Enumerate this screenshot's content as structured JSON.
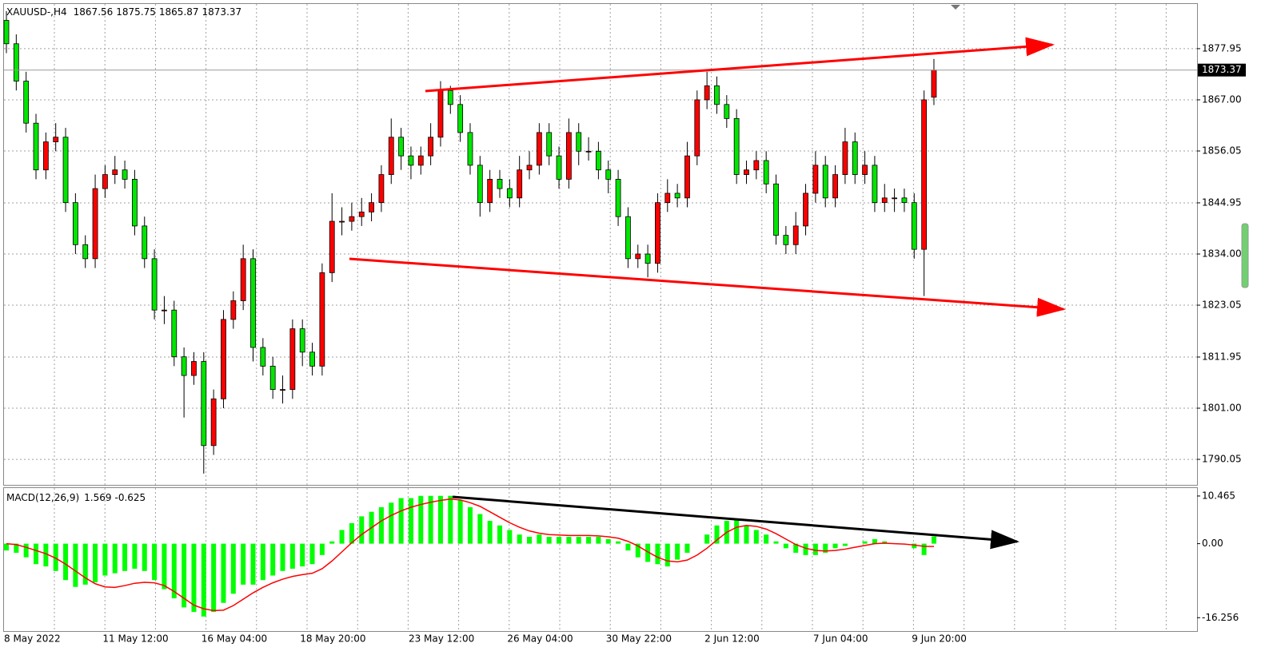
{
  "chart_data": [
    {
      "type": "candlestick",
      "title": "XAUUSD-,H4",
      "categories": [
        "8 May 2022",
        null,
        null,
        null,
        null,
        null,
        null,
        null,
        null,
        null,
        "11 May 12:00",
        null,
        null,
        null,
        null,
        null,
        null,
        null,
        null,
        null,
        "16 May 04:00",
        null,
        null,
        null,
        null,
        null,
        null,
        null,
        null,
        null,
        "18 May 20:00",
        null,
        null,
        null,
        null,
        null,
        null,
        null,
        null,
        null,
        null,
        "23 May 12:00",
        null,
        null,
        null,
        null,
        null,
        null,
        null,
        null,
        null,
        "26 May 04:00",
        null,
        null,
        null,
        null,
        null,
        null,
        null,
        null,
        null,
        "30 May 22:00",
        null,
        null,
        null,
        null,
        null,
        null,
        null,
        null,
        null,
        "2 Jun 12:00",
        null,
        null,
        null,
        null,
        null,
        null,
        null,
        null,
        null,
        null,
        "7 Jun 04:00",
        null,
        null,
        null,
        null,
        null,
        null,
        null,
        null,
        null,
        "9 Jun 20:00",
        null,
        null
      ],
      "open": [
        1884,
        1879,
        1871,
        1862,
        1852,
        1858,
        1859,
        1845,
        1836,
        1833,
        1848,
        1851,
        1852,
        1850,
        1840,
        1833,
        1822,
        1822,
        1812,
        1808,
        1811,
        1793,
        1803,
        1820,
        1824,
        1833,
        1814,
        1810,
        1805,
        1805,
        1818,
        1813,
        1810,
        1830,
        1841,
        1841,
        1842,
        1843,
        1845,
        1851,
        1859,
        1855,
        1853,
        1855,
        1859,
        1869,
        1866,
        1860,
        1853,
        1845,
        1850,
        1848,
        1846,
        1852,
        1853,
        1860,
        1855,
        1850,
        1860,
        1856,
        1856,
        1852,
        1850,
        1842,
        1833,
        1834,
        1832,
        1845,
        1847,
        1846,
        1855,
        1867,
        1870,
        1866,
        1863,
        1851,
        1852,
        1854,
        1849,
        1838,
        1836,
        1840,
        1847,
        1853,
        1846,
        1851,
        1858,
        1851,
        1853,
        1845,
        1846,
        1846,
        1845,
        1835,
        1867.56
      ],
      "high": [
        1886,
        1881,
        1873,
        1864,
        1860,
        1862,
        1861,
        1847,
        1838,
        1851,
        1853,
        1855,
        1854,
        1852,
        1842,
        1835,
        1825,
        1824,
        1814,
        1813,
        1813,
        1805,
        1822,
        1826,
        1836,
        1835,
        1816,
        1812,
        1808,
        1820,
        1820,
        1815,
        1832,
        1847,
        1844,
        1845,
        1846,
        1847,
        1853,
        1863,
        1861,
        1857,
        1857,
        1862,
        1871,
        1870,
        1868,
        1862,
        1855,
        1852,
        1852,
        1850,
        1855,
        1856,
        1862,
        1862,
        1857,
        1863,
        1862,
        1859,
        1858,
        1854,
        1852,
        1844,
        1836,
        1836,
        1847,
        1850,
        1849,
        1858,
        1869,
        1873,
        1872,
        1868,
        1865,
        1854,
        1856,
        1856,
        1851,
        1840,
        1843,
        1849,
        1856,
        1855,
        1853,
        1861,
        1860,
        1856,
        1855,
        1849,
        1848,
        1848,
        1847,
        1869,
        1875.75
      ],
      "low": [
        1877,
        1869,
        1860,
        1850,
        1850,
        1856,
        1843,
        1834,
        1831,
        1831,
        1846,
        1849,
        1848,
        1838,
        1831,
        1820,
        1819,
        1810,
        1799,
        1806,
        1787,
        1791,
        1801,
        1818,
        1822,
        1811,
        1808,
        1803,
        1802,
        1803,
        1810,
        1808,
        1808,
        1828,
        1838,
        1839,
        1840,
        1841,
        1843,
        1849,
        1852,
        1850,
        1851,
        1853,
        1857,
        1864,
        1858,
        1851,
        1842,
        1843,
        1846,
        1844,
        1844,
        1850,
        1851,
        1853,
        1848,
        1848,
        1853,
        1854,
        1850,
        1847,
        1840,
        1831,
        1831,
        1829,
        1830,
        1843,
        1844,
        1844,
        1853,
        1865,
        1864,
        1861,
        1849,
        1849,
        1850,
        1847,
        1836,
        1834,
        1834,
        1838,
        1845,
        1844,
        1844,
        1849,
        1849,
        1849,
        1843,
        1843,
        1843,
        1843,
        1833,
        1825,
        1865.87
      ],
      "close": [
        1879,
        1871,
        1862,
        1852,
        1858,
        1859,
        1845,
        1836,
        1833,
        1848,
        1851,
        1852,
        1850,
        1840,
        1833,
        1822,
        1822,
        1812,
        1808,
        1811,
        1793,
        1803,
        1820,
        1824,
        1833,
        1814,
        1810,
        1805,
        1805,
        1818,
        1813,
        1810,
        1830,
        1841,
        1841,
        1842,
        1843,
        1845,
        1851,
        1859,
        1855,
        1853,
        1855,
        1859,
        1869,
        1866,
        1860,
        1853,
        1845,
        1850,
        1848,
        1846,
        1852,
        1853,
        1860,
        1855,
        1850,
        1860,
        1856,
        1856,
        1852,
        1850,
        1842,
        1833,
        1834,
        1832,
        1845,
        1847,
        1846,
        1855,
        1867,
        1870,
        1866,
        1863,
        1851,
        1852,
        1854,
        1849,
        1838,
        1836,
        1840,
        1847,
        1853,
        1846,
        1851,
        1858,
        1851,
        1853,
        1845,
        1846,
        1846,
        1845,
        1835,
        1867,
        1873.37
      ],
      "up_color": "#ff0000",
      "down_color": "#00e600",
      "ylim": [
        1784.59,
        1887.51
      ],
      "yticks": [
        1877.95,
        {
          "value": 1867,
          "label": "1867.00"
        },
        1856.05,
        1844.95,
        {
          "value": 1834,
          "label": "1834.00"
        },
        1823.05,
        1811.95,
        {
          "value": 1801,
          "label": "1801.00"
        },
        1790.05
      ],
      "grid": true
    },
    {
      "type": "macd",
      "title": "MACD(12,26,9)",
      "histogram": {
        "color": "#00ff00",
        "values": [
          -1.5,
          -2,
          -3,
          -4.5,
          -5,
          -6,
          -8,
          -9.5,
          -9,
          -8.5,
          -7,
          -6.5,
          -6,
          -5.5,
          -6,
          -8,
          -10,
          -12,
          -14,
          -15,
          -16,
          -15,
          -13,
          -11,
          -9,
          -9,
          -8,
          -7,
          -6,
          -5.5,
          -5,
          -4.5,
          -2.5,
          0.5,
          3,
          4.5,
          6,
          7,
          8,
          9,
          10,
          10,
          10.5,
          10.5,
          10.5,
          10.5,
          9.5,
          8,
          6.5,
          5,
          4,
          3,
          2,
          1.5,
          2,
          1.5,
          1.5,
          1.5,
          1.5,
          1.5,
          1.5,
          1,
          0.5,
          -1.5,
          -3,
          -4,
          -4.5,
          -5,
          -3.5,
          -2,
          0,
          2,
          4,
          5,
          5.5,
          4,
          3,
          2,
          0.5,
          -1,
          -2,
          -2.5,
          -2.5,
          -2,
          -1,
          -0.5,
          0,
          0.5,
          1,
          0.5,
          0,
          0,
          -1,
          -2.5,
          1.569
        ]
      },
      "signal": {
        "color": "#ff0000",
        "values": [
          0,
          -0.2,
          -0.8,
          -1.5,
          -2.2,
          -3.2,
          -4.5,
          -6,
          -7.5,
          -8.8,
          -9.5,
          -9.6,
          -9.2,
          -8.7,
          -8.5,
          -8.6,
          -9.2,
          -10.5,
          -12,
          -13.5,
          -14.3,
          -14.7,
          -14.6,
          -13.6,
          -12.2,
          -10.8,
          -9.6,
          -8.6,
          -7.8,
          -7.2,
          -6.8,
          -6.5,
          -5.5,
          -3.8,
          -1.8,
          0.2,
          2,
          3.5,
          5,
          6.2,
          7.2,
          8,
          8.6,
          9.1,
          9.5,
          9.8,
          9.6,
          9,
          8.2,
          7,
          5.8,
          4.6,
          3.6,
          2.8,
          2.3,
          2,
          1.9,
          1.8,
          1.8,
          1.8,
          1.7,
          1.5,
          1.2,
          0.5,
          -0.5,
          -1.8,
          -3,
          -3.8,
          -4,
          -3.6,
          -2.5,
          -1,
          0.8,
          2.5,
          3.6,
          4,
          3.8,
          3.2,
          2.2,
          1,
          -0.2,
          -1,
          -1.5,
          -1.6,
          -1.5,
          -1.2,
          -0.8,
          -0.4,
          0,
          0.1,
          0,
          -0.1,
          -0.3,
          -0.6,
          -0.625
        ]
      },
      "ylim": [
        -19.19,
        12.21
      ],
      "yticks": [
        10.465,
        {
          "value": 0,
          "label": "0.00"
        },
        -16.256
      ]
    }
  ]
}
